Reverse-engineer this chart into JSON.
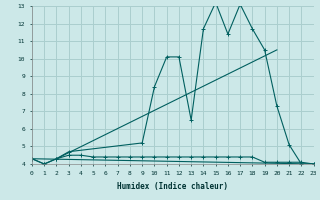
{
  "xlabel": "Humidex (Indice chaleur)",
  "background_color": "#cce8e8",
  "grid_color": "#aacece",
  "line_color": "#005f5f",
  "x_min": 0,
  "x_max": 23,
  "y_min": 4,
  "y_max": 13,
  "line1_x": [
    0,
    1,
    2,
    3,
    4,
    5,
    6,
    7,
    8,
    9,
    10,
    11,
    12,
    13,
    14,
    15,
    16,
    17,
    18,
    19,
    20,
    21,
    22,
    23
  ],
  "line1_y": [
    4.3,
    4.0,
    4.3,
    4.5,
    4.5,
    4.4,
    4.4,
    4.4,
    4.4,
    4.4,
    4.4,
    4.4,
    4.4,
    4.4,
    4.4,
    4.4,
    4.4,
    4.4,
    4.4,
    4.1,
    4.1,
    4.1,
    4.1,
    4.0
  ],
  "line2_x": [
    0,
    1,
    2,
    3,
    9,
    10,
    11,
    12,
    13,
    14,
    15,
    16,
    17,
    18,
    19,
    20,
    21,
    22,
    23
  ],
  "line2_y": [
    4.3,
    4.0,
    4.3,
    4.7,
    5.2,
    8.4,
    10.1,
    10.1,
    6.5,
    11.7,
    13.2,
    11.4,
    13.1,
    11.7,
    10.5,
    7.3,
    5.1,
    4.0,
    4.0
  ],
  "line3_x": [
    0,
    23
  ],
  "line3_y": [
    4.3,
    4.0
  ],
  "line4_x": [
    2,
    20
  ],
  "line4_y": [
    4.3,
    10.5
  ]
}
